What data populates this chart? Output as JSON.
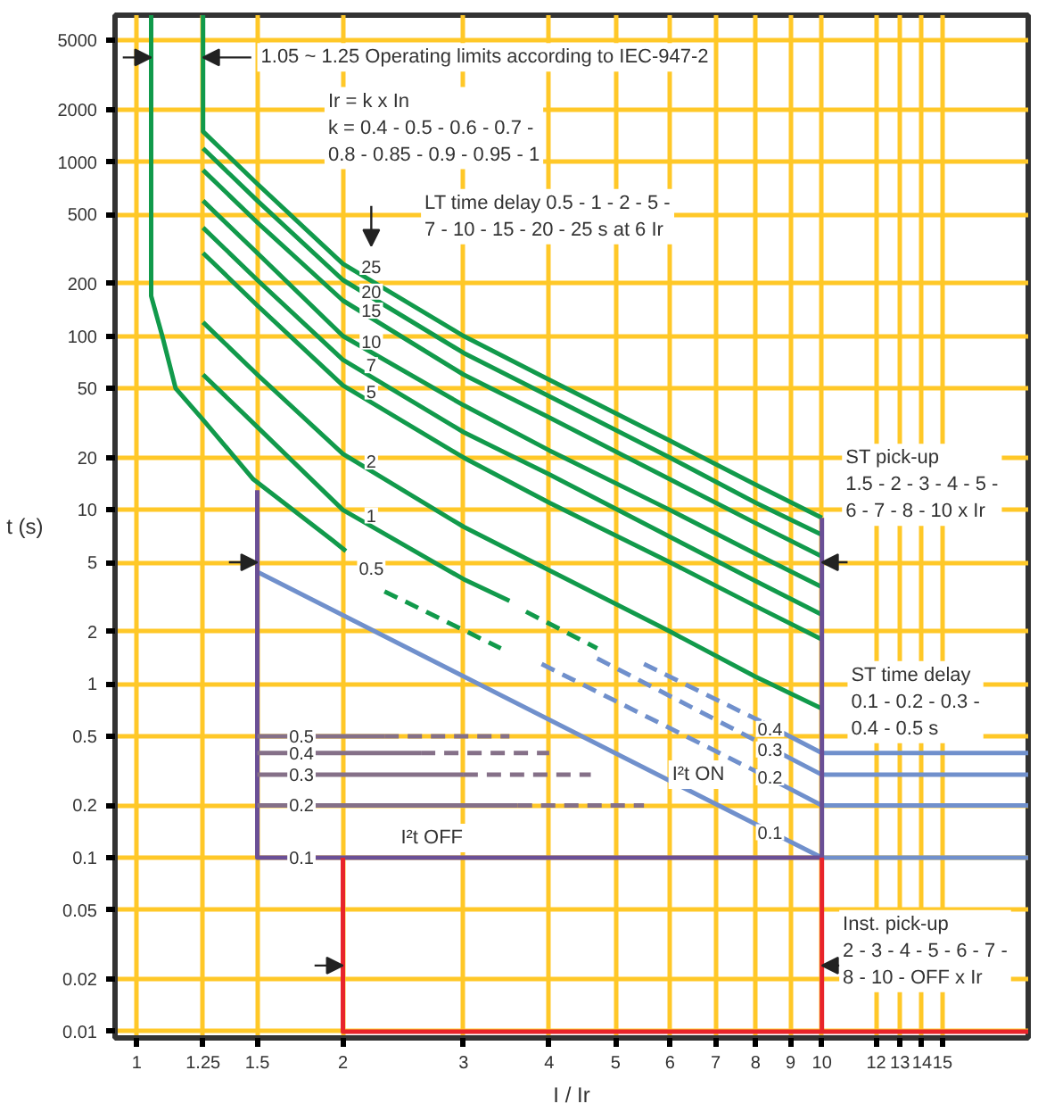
{
  "chart_data": {
    "type": "line",
    "xlabel": "I / Ir",
    "ylabel": "t (s)",
    "log": "xy",
    "grid": true,
    "line_style": "solid",
    "xlim": [
      0.93,
      20
    ],
    "ylim": [
      0.0092,
      7000
    ],
    "xticks": [
      1,
      1.25,
      1.5,
      2,
      3,
      4,
      5,
      6,
      7,
      8,
      9,
      10,
      12,
      13,
      14,
      15
    ],
    "yticks": [
      0.01,
      0.02,
      0.05,
      0.1,
      0.2,
      0.5,
      1,
      2,
      5,
      10,
      20,
      50,
      100,
      200,
      500,
      1000,
      2000,
      5000
    ],
    "series": [
      {
        "color": "#119a4b",
        "x": [
          1.05,
          1.05,
          1.07,
          1.09,
          1.14,
          1.25,
          1.48,
          1.93,
          2.02
        ],
        "values": [
          7000,
          170,
          130,
          100,
          50,
          33,
          15,
          6.7,
          5.8
        ]
      },
      {
        "color": "#119a4b",
        "line_style": "dashed",
        "x": [
          2.3,
          3.4
        ],
        "values": [
          3.4,
          1.6
        ]
      },
      {
        "color": "#119a4b",
        "x": [
          1.25,
          1.25,
          1.5,
          2,
          3,
          4,
          6,
          8,
          10
        ],
        "values": [
          7000,
          1500,
          750,
          260,
          100,
          56,
          25,
          14,
          9
        ]
      },
      {
        "color": "#119a4b",
        "x": [
          1.25,
          1.5,
          2,
          3,
          4,
          6,
          8,
          10
        ],
        "values": [
          1200,
          600,
          210,
          80,
          45,
          20,
          11,
          7.2
        ]
      },
      {
        "color": "#119a4b",
        "x": [
          1.25,
          1.5,
          2,
          3,
          4,
          6,
          8,
          10
        ],
        "values": [
          900,
          450,
          160,
          60,
          34,
          15,
          8.4,
          5.4
        ]
      },
      {
        "color": "#119a4b",
        "x": [
          1.25,
          1.5,
          2,
          3,
          4,
          6,
          8,
          10
        ],
        "values": [
          600,
          300,
          100,
          40,
          22,
          10,
          5.6,
          3.6
        ]
      },
      {
        "color": "#119a4b",
        "x": [
          1.25,
          1.5,
          2,
          3,
          4,
          6,
          8,
          10
        ],
        "values": [
          420,
          210,
          73,
          28,
          16,
          7,
          3.9,
          2.5
        ]
      },
      {
        "color": "#119a4b",
        "x": [
          1.25,
          1.5,
          2,
          3,
          4,
          6,
          8,
          10
        ],
        "values": [
          300,
          150,
          52,
          20,
          11,
          5,
          2.8,
          1.8
        ]
      },
      {
        "color": "#119a4b",
        "x": [
          1.25,
          1.5,
          2,
          3,
          4,
          6,
          8,
          10
        ],
        "values": [
          120,
          60,
          21,
          8,
          4.5,
          2,
          1.1,
          0.72
        ]
      },
      {
        "color": "#119a4b",
        "x": [
          1.25,
          1.5,
          2,
          3,
          3.5
        ],
        "values": [
          60,
          30,
          10,
          4,
          3
        ]
      },
      {
        "color": "#119a4b",
        "line_style": "dashed",
        "x": [
          3.7,
          4.7
        ],
        "values": [
          2.6,
          1.6
        ]
      },
      {
        "color": "#7090cc",
        "x": [
          1.5,
          10,
          20
        ],
        "values": [
          4.4,
          0.1,
          0.1
        ]
      },
      {
        "color": "#7090cc",
        "line_style": "dashed",
        "x": [
          3.9,
          8.2
        ],
        "values": [
          1.3,
          0.3
        ]
      },
      {
        "color": "#7090cc",
        "x": [
          8.2,
          10,
          20
        ],
        "values": [
          0.3,
          0.2,
          0.2
        ]
      },
      {
        "color": "#7090cc",
        "line_style": "dashed",
        "x": [
          4.7,
          8.2
        ],
        "values": [
          1.4,
          0.45
        ]
      },
      {
        "color": "#7090cc",
        "x": [
          8.2,
          10,
          20
        ],
        "values": [
          0.45,
          0.3,
          0.3
        ]
      },
      {
        "color": "#7090cc",
        "line_style": "dashed",
        "x": [
          5.5,
          8.2
        ],
        "values": [
          1.3,
          0.6
        ]
      },
      {
        "color": "#7090cc",
        "x": [
          8.2,
          10,
          20
        ],
        "values": [
          0.6,
          0.4,
          0.4
        ]
      },
      {
        "color": "#6a4f96",
        "x": [
          1.5,
          1.5,
          10,
          10
        ],
        "values": [
          13,
          0.1,
          0.1,
          9
        ]
      },
      {
        "color": "#857088",
        "x": [
          1.5,
          2.3
        ],
        "values": [
          0.5,
          0.5
        ]
      },
      {
        "color": "#857088",
        "line_style": "dashed",
        "x": [
          2.3,
          3.5
        ],
        "values": [
          0.5,
          0.5
        ]
      },
      {
        "color": "#857088",
        "x": [
          1.5,
          2.6
        ],
        "values": [
          0.4,
          0.4
        ]
      },
      {
        "color": "#857088",
        "line_style": "dashed",
        "x": [
          2.6,
          4
        ],
        "values": [
          0.4,
          0.4
        ]
      },
      {
        "color": "#857088",
        "x": [
          1.5,
          3
        ],
        "values": [
          0.3,
          0.3
        ]
      },
      {
        "color": "#857088",
        "line_style": "dashed",
        "x": [
          3,
          4.6
        ],
        "values": [
          0.3,
          0.3
        ]
      },
      {
        "color": "#857088",
        "x": [
          1.5,
          3.6
        ],
        "values": [
          0.2,
          0.2
        ]
      },
      {
        "color": "#857088",
        "line_style": "dashed",
        "x": [
          3.6,
          5.5
        ],
        "values": [
          0.2,
          0.2
        ]
      },
      {
        "color": "#e8242b",
        "x": [
          2,
          2,
          20
        ],
        "values": [
          0.1,
          0.01,
          0.01
        ]
      },
      {
        "color": "#e8242b",
        "x": [
          10,
          10
        ],
        "values": [
          0.1,
          0.01
        ]
      }
    ],
    "annotations": [
      {
        "text": "1.05 ~ 1.25 Operating limits according to IEC-947-2",
        "x": 1.25,
        "y": 4000
      },
      "Ir = k x In\nk = 0.4 - 0.5 - 0.6 - 0.7 -\n0.8 - 0.85 - 0.9 - 0.95 - 1",
      "LT time delay 0.5 - 1 - 2 - 5 -\n7 - 10 - 15 - 20 - 25 s at 6 Ir",
      {
        "text": "ST pick-up\n1.5 - 2 - 3 - 4 - 5 -\n6 - 7 - 8 - 10  x Ir",
        "x": 10,
        "y": 5
      },
      "ST time delay\n0.1 - 0.2 - 0.3 -\n0.4 - 0.5 s",
      {
        "text": "Inst. pick-up\n2 - 3 - 4 - 5 - 6 - 7 -\n8 - 10 - OFF  x Ir",
        "x": 10,
        "y": 0.024
      },
      "I²t OFF",
      "I²t ON",
      {
        "text": "25",
        "x": 2.2,
        "y": 250
      },
      {
        "text": "20",
        "x": 2.2,
        "y": 180
      },
      {
        "text": "15",
        "x": 2.2,
        "y": 140
      },
      {
        "text": "10",
        "x": 2.2,
        "y": 93
      },
      {
        "text": "7",
        "x": 2.2,
        "y": 68
      },
      {
        "text": "5",
        "x": 2.2,
        "y": 48
      },
      {
        "text": "2",
        "x": 2.2,
        "y": 19
      },
      {
        "text": "1",
        "x": 2.2,
        "y": 9.3
      },
      {
        "text": "0.5",
        "x": 2.2,
        "y": 4.6
      },
      {
        "text": "0.5",
        "x": 1.74,
        "y": 0.5
      },
      {
        "text": "0.4",
        "x": 1.74,
        "y": 0.4
      },
      {
        "text": "0.3",
        "x": 1.74,
        "y": 0.3
      },
      {
        "text": "0.2",
        "x": 1.74,
        "y": 0.2
      },
      {
        "text": "0.1",
        "x": 1.74,
        "y": 0.1
      },
      {
        "text": "0.4",
        "x": 8.4,
        "y": 0.55
      },
      {
        "text": "0.3",
        "x": 8.4,
        "y": 0.42
      },
      {
        "text": "0.2",
        "x": 8.4,
        "y": 0.29
      },
      {
        "text": "0.1",
        "x": 8.4,
        "y": 0.14
      }
    ]
  }
}
